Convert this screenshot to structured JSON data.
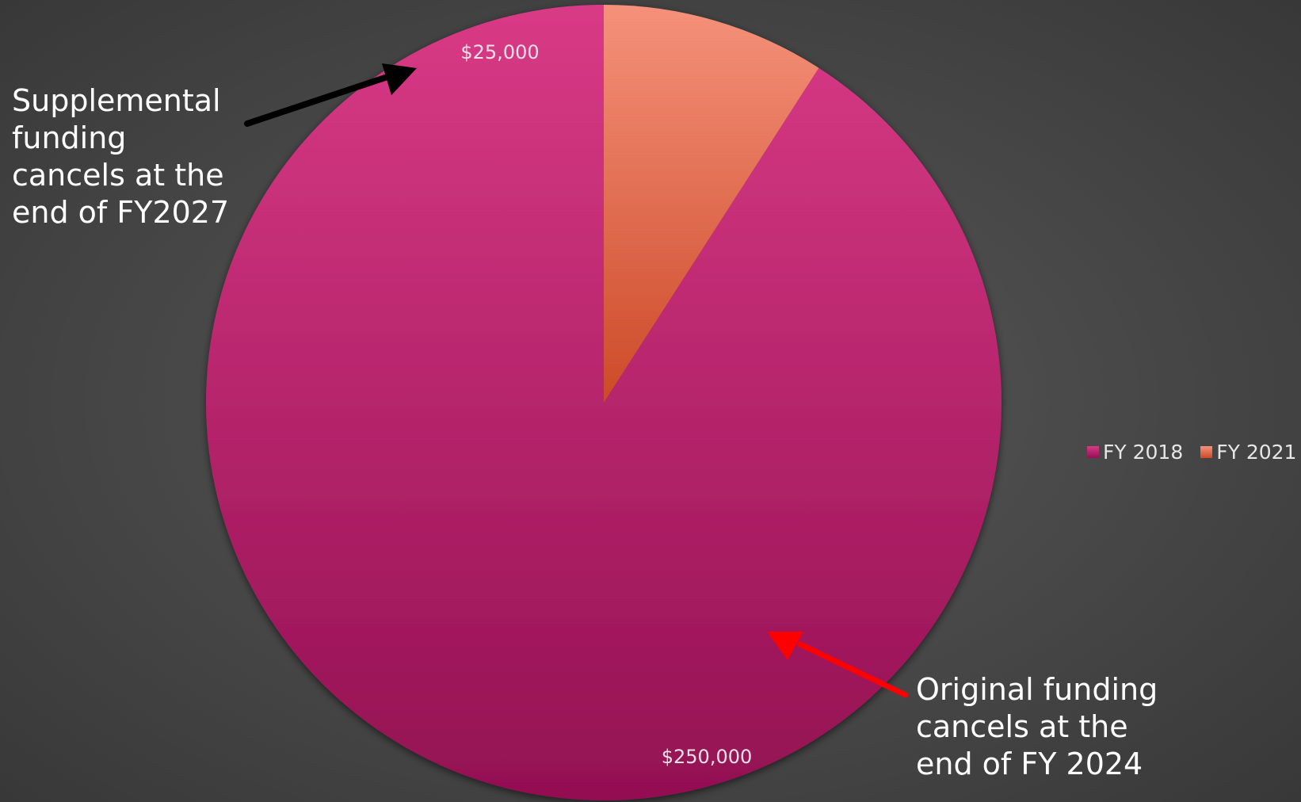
{
  "chart_data": {
    "type": "pie",
    "title": "",
    "categories": [
      "FY 2018",
      "FY 2021"
    ],
    "values": [
      250000,
      25000
    ],
    "data_labels": [
      "$250,000",
      "$25,000"
    ],
    "colors": [
      "#b02566",
      "#e8795a"
    ],
    "gradients": [
      {
        "top": "#d93a86",
        "bottom": "#931052"
      },
      {
        "top": "#f5917a",
        "bottom": "#cc4a28"
      }
    ],
    "start_angle_deg": 0,
    "direction": "counterclockwise",
    "legend": {
      "placement": "right",
      "entries": [
        "FY 2018",
        "FY 2021"
      ]
    }
  },
  "annotations": {
    "supplemental": {
      "text": "Supplemental\nfunding\ncancels at the\nend of FY2027",
      "arrow_color": "#000000"
    },
    "original": {
      "text": "Original funding\ncancels at the\nend of FY 2024",
      "arrow_color": "#ff0000"
    }
  }
}
